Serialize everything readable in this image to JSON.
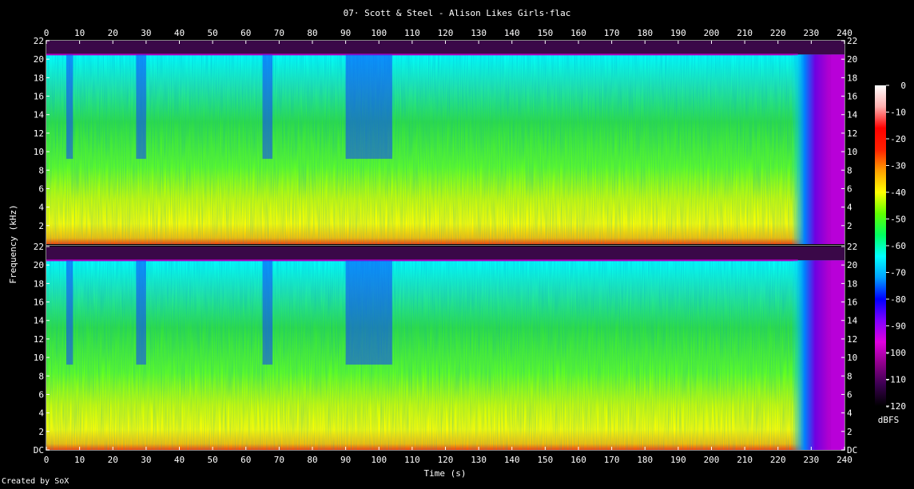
{
  "chart_data": {
    "type": "heatmap",
    "title": "07· Scott & Steel - Alison Likes Girls·flac",
    "xlabel": "Time (s)",
    "ylabel": "Frequency (kHz)",
    "xlim": [
      0,
      240
    ],
    "ylim": [
      0,
      22
    ],
    "x_ticks": [
      "0",
      "10",
      "20",
      "30",
      "40",
      "50",
      "60",
      "70",
      "80",
      "90",
      "100",
      "110",
      "120",
      "130",
      "140",
      "150",
      "160",
      "170",
      "180",
      "190",
      "200",
      "210",
      "220",
      "230",
      "240"
    ],
    "y_ticks_upper": [
      "2",
      "4",
      "6",
      "8",
      "10",
      "12",
      "14",
      "16",
      "18",
      "20",
      "22"
    ],
    "y_ticks_lower": [
      "DC",
      "2",
      "4",
      "6",
      "8",
      "10",
      "12",
      "14",
      "16",
      "18",
      "20",
      "22"
    ],
    "colorbar": {
      "label": "dBFS",
      "ticks": [
        "0",
        "-10",
        "-20",
        "-30",
        "-40",
        "-50",
        "-60",
        "-70",
        "-80",
        "-90",
        "-100",
        "-110",
        "-120"
      ],
      "range": [
        -120,
        0
      ],
      "colors": [
        "#000000",
        "#3a0050",
        "#90008c",
        "#e000e0",
        "#8000ff",
        "#0000ff",
        "#00a0ff",
        "#00ffff",
        "#00ff60",
        "#60ff00",
        "#ffff00",
        "#ffa000",
        "#ff2000",
        "#ff0000",
        "#ffb0b0",
        "#ffffff"
      ]
    },
    "channels": [
      "upper",
      "lower"
    ],
    "lowpass_cutoff_khz": 20.5,
    "audio_end_s": 236,
    "quiet_segments_s": [
      [
        6,
        8
      ],
      [
        27,
        30
      ],
      [
        65,
        68
      ],
      [
        90,
        104
      ]
    ]
  },
  "footer": {
    "credit": "Created by SoX"
  }
}
